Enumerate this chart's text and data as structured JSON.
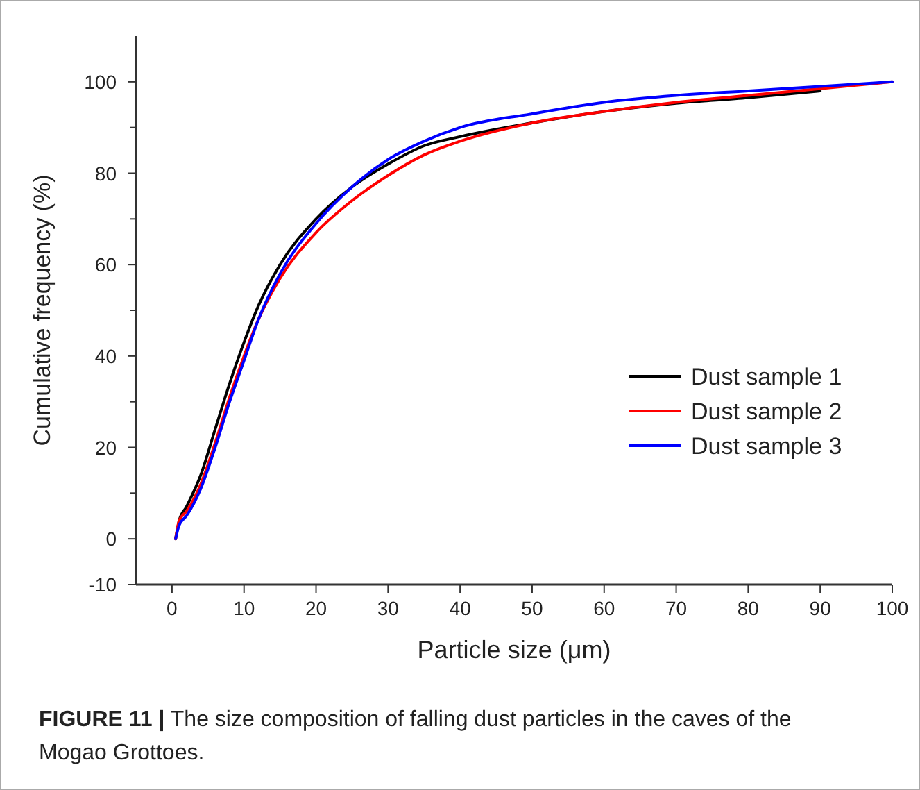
{
  "chart_data": {
    "type": "line",
    "xlabel": "Particle size (μm)",
    "ylabel": "Cumulative frequency (%)",
    "x": [
      0.5,
      1,
      2,
      4,
      6,
      8,
      10,
      12,
      15,
      20,
      25,
      30,
      35,
      40,
      50,
      60,
      70,
      80,
      90,
      100
    ],
    "series": [
      {
        "name": "Dust sample 1",
        "color": "#000000",
        "values": [
          0,
          4,
          7,
          14,
          24,
          34,
          43,
          51,
          60,
          70,
          77,
          82,
          86,
          88,
          91,
          93.5,
          95.3,
          96.5,
          98,
          null
        ]
      },
      {
        "name": "Dust sample 2",
        "color": "#ff0000",
        "values": [
          0,
          4,
          6,
          12,
          21,
          31,
          40,
          48,
          57,
          67,
          74,
          79.5,
          84,
          87,
          91,
          93.5,
          95.5,
          97,
          98.5,
          100
        ]
      },
      {
        "name": "Dust sample 3",
        "color": "#0000ff",
        "values": [
          0,
          3,
          5,
          11,
          20,
          30,
          39,
          48,
          58,
          69,
          77,
          83,
          87,
          90,
          93,
          95.5,
          97,
          98,
          99,
          100
        ]
      }
    ],
    "xlim": [
      -5,
      100
    ],
    "xticks": [
      0,
      10,
      20,
      30,
      40,
      50,
      60,
      70,
      80,
      90,
      100
    ],
    "ylim": [
      -10,
      110
    ],
    "yticks": [
      -10,
      0,
      {
        "value": 10,
        "label": null
      },
      20,
      {
        "value": 30,
        "label": null
      },
      40,
      {
        "value": 50,
        "label": null
      },
      60,
      {
        "value": 70,
        "label": null
      },
      80,
      {
        "value": 90,
        "label": null
      },
      100
    ],
    "legend": "bottom right",
    "grid": false,
    "marker": "none",
    "line_style": "solid",
    "annotations": [
      "FIGURE 11 | The size composition of falling dust particles in the caves of the Mogao Grottoes."
    ]
  }
}
